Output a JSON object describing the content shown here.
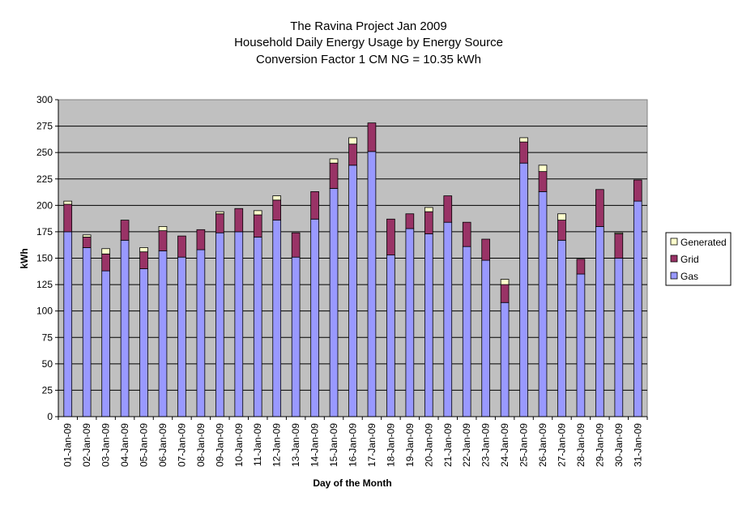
{
  "chart_data": {
    "type": "bar",
    "stacked": true,
    "title": [
      "The Ravina Project Jan 2009",
      "Household Daily Energy Usage by Energy Source",
      "Conversion Factor 1 CM NG = 10.35 kWh"
    ],
    "xlabel": "Day of the Month",
    "ylabel": "kWh",
    "ylim": [
      0,
      300
    ],
    "yticks": [
      0,
      25,
      50,
      75,
      100,
      125,
      150,
      175,
      200,
      225,
      250,
      275,
      300
    ],
    "grid": true,
    "legend_position": "right",
    "categories": [
      "01-Jan-09",
      "02-Jan-09",
      "03-Jan-09",
      "04-Jan-09",
      "05-Jan-09",
      "06-Jan-09",
      "07-Jan-09",
      "08-Jan-09",
      "09-Jan-09",
      "10-Jan-09",
      "11-Jan-09",
      "12-Jan-09",
      "13-Jan-09",
      "14-Jan-09",
      "15-Jan-09",
      "16-Jan-09",
      "17-Jan-09",
      "18-Jan-09",
      "19-Jan-09",
      "20-Jan-09",
      "21-Jan-09",
      "22-Jan-09",
      "23-Jan-09",
      "24-Jan-09",
      "25-Jan-09",
      "26-Jan-09",
      "27-Jan-09",
      "28-Jan-09",
      "29-Jan-09",
      "30-Jan-09",
      "31-Jan-09"
    ],
    "series": [
      {
        "name": "Gas",
        "color": "#9999ff",
        "values": [
          175,
          160,
          138,
          167,
          140,
          157,
          151,
          158,
          174,
          175,
          170,
          186,
          151,
          187,
          216,
          238,
          251,
          153,
          178,
          173,
          184,
          161,
          148,
          108,
          240,
          213,
          167,
          135,
          180,
          150,
          204
        ]
      },
      {
        "name": "Grid",
        "color": "#993366",
        "values": [
          26,
          10,
          16,
          19,
          16,
          19,
          20,
          19,
          18,
          22,
          21,
          19,
          23,
          26,
          24,
          20,
          27,
          34,
          14,
          21,
          25,
          23,
          20,
          17,
          20,
          19,
          19,
          14,
          35,
          23,
          20
        ]
      },
      {
        "name": "Generated",
        "color": "#ffffcc",
        "values": [
          3,
          2,
          5,
          0,
          4,
          4,
          0,
          0,
          2,
          0,
          4,
          4,
          0,
          0,
          4,
          6,
          0,
          0,
          0,
          4,
          0,
          0,
          0,
          5,
          4,
          6,
          6,
          0,
          0,
          1,
          0
        ]
      }
    ]
  }
}
